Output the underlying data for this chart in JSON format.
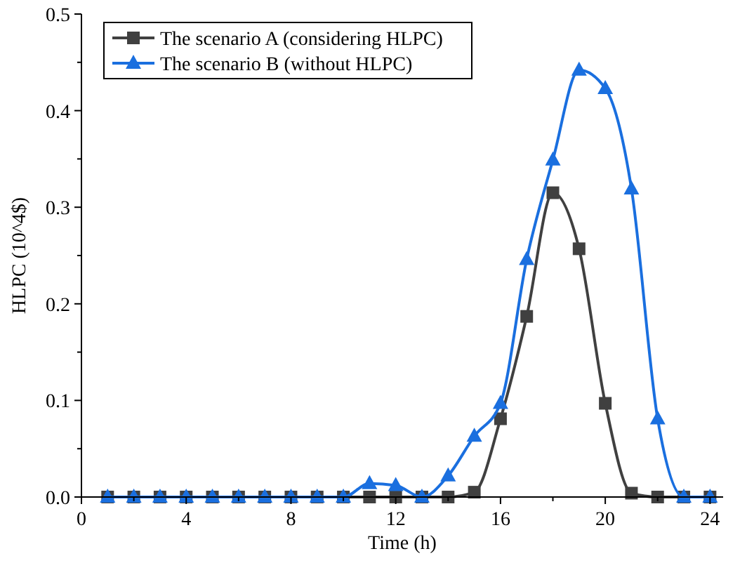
{
  "chart_data": {
    "type": "line",
    "xlabel": "Time (h)",
    "ylabel": "HLPC (10^4$)",
    "x": [
      1,
      2,
      3,
      4,
      5,
      6,
      7,
      8,
      9,
      10,
      11,
      12,
      13,
      14,
      15,
      16,
      17,
      18,
      19,
      20,
      21,
      22,
      23,
      24
    ],
    "xlim": [
      0,
      24.5
    ],
    "xticks": [
      0,
      4,
      8,
      12,
      16,
      20,
      24
    ],
    "ylim": [
      0,
      0.5
    ],
    "yticks": [
      {
        "value": 0,
        "label": "0.0"
      },
      0.1,
      0.2,
      0.3,
      0.4,
      0.5
    ],
    "legend": "top left",
    "grid": false,
    "series": [
      {
        "name": "The scenario A (considering HLPC)",
        "color": "#404040",
        "marker": "square",
        "values": [
          0,
          0,
          0,
          0,
          0,
          0,
          0,
          0,
          0,
          0,
          0,
          0,
          0,
          0,
          0.005,
          0.081,
          0.187,
          0.315,
          0.257,
          0.097,
          0.004,
          0,
          0,
          0
        ]
      },
      {
        "name": "The scenario B (without HLPC)",
        "color": "#1a6fdf",
        "marker": "triangle",
        "values": [
          0,
          0,
          0,
          0,
          0,
          0,
          0,
          0,
          0,
          0,
          0.014,
          0.012,
          0,
          0.022,
          0.063,
          0.097,
          0.246,
          0.349,
          0.442,
          0.423,
          0.319,
          0.081,
          0,
          0
        ]
      }
    ]
  }
}
